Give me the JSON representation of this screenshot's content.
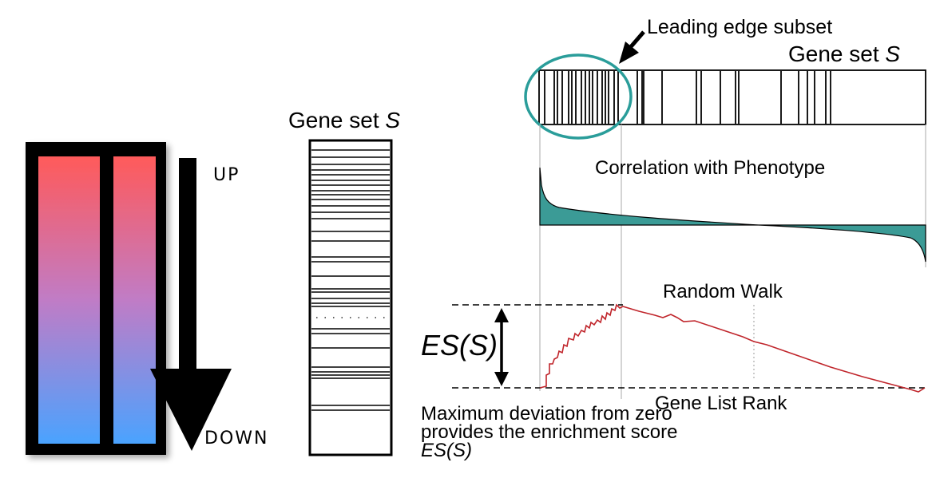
{
  "ranked_list": {
    "up_label": "UP",
    "down_label": "DOWN",
    "colors": {
      "top": "#ff5a5a",
      "bottom": "#4aa3ff",
      "frame": "#000000"
    }
  },
  "gene_set_middle": {
    "label_prefix": "Gene set ",
    "label_var": "S"
  },
  "gsea_panel": {
    "leading_edge_label": "Leading edge subset",
    "gene_set_label_prefix": "Gene set ",
    "gene_set_label_var": "S",
    "correlation_label": "Correlation with Phenotype",
    "random_walk_label": "Random Walk",
    "gene_list_rank_label": "Gene List Rank",
    "es_label": "ES(S)",
    "max_deviation_text_1": "Maximum deviation from zero provides the enrichment score ",
    "max_deviation_text_2": "ES(S)",
    "colors": {
      "circle": "#2a9d9a",
      "correlation_fill": "#3b9b96",
      "walk_line": "#c0252b"
    }
  }
}
